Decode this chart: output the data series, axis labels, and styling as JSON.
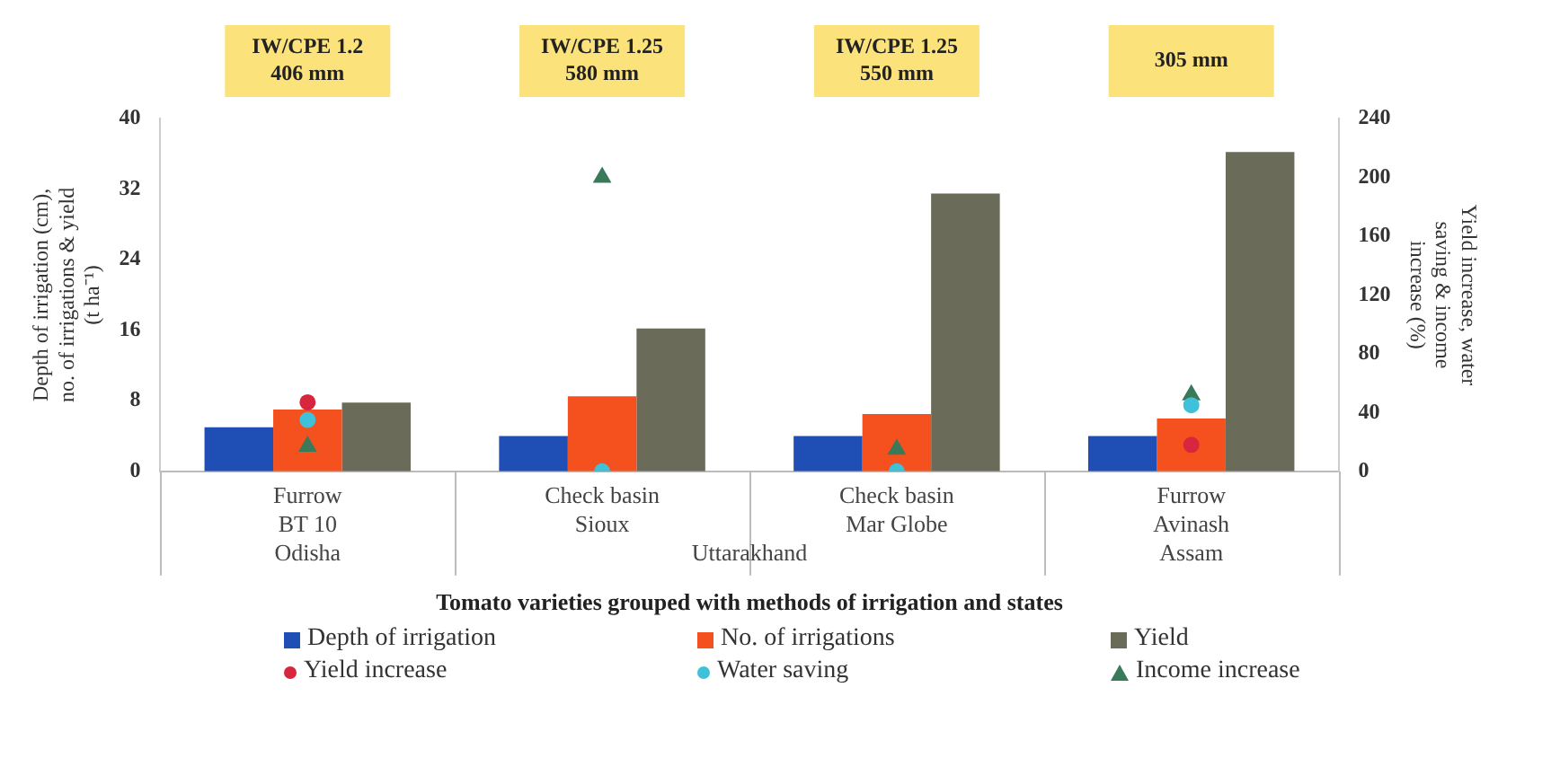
{
  "chart_data": {
    "type": "bar",
    "xlabel": "Tomato varieties grouped with methods of irrigation and states",
    "ylabel": "Depth of irrigation (cm), no. of irrigations & yield (t ha⁻¹)",
    "y2label": "Yield increase, water saving & income increase (%)",
    "categories": [
      "Furrow\nBT 10\nOdisha",
      "Check basin\nSioux",
      "Check basin\nMar Globe",
      "Furrow\nAvinash\nAssam"
    ],
    "series": [
      {
        "name": "Depth of irrigation",
        "color": "#1f4fb4",
        "values": [
          5,
          4,
          4,
          4
        ]
      },
      {
        "name": "No. of irrigations",
        "color": "#f4511e",
        "values": [
          7,
          8.5,
          6.5,
          6
        ]
      },
      {
        "name": "Yield",
        "color": "#6b6b5a",
        "values": [
          7.8,
          16.2,
          31.5,
          36.2
        ]
      },
      {
        "name": "Yield increase",
        "type": "scatter",
        "axis": "y2",
        "marker": "circle",
        "color": "#d7263d",
        "x": [
          "Furrow\nBT 10\nOdisha",
          "Check basin\nSioux",
          "Check basin\nMar Globe",
          "Furrow\nAvinash\nAssam"
        ],
        "values": [
          47,
          null,
          null,
          18
        ]
      },
      {
        "name": "Water saving",
        "type": "scatter",
        "axis": "y2",
        "marker": "circle",
        "color": "#3fc1d9",
        "x": [
          "Furrow\nBT 10\nOdisha",
          "Check basin\nSioux",
          "Check basin\nMar Globe",
          "Furrow\nAvinash\nAssam"
        ],
        "values": [
          35,
          0,
          0,
          45
        ]
      },
      {
        "name": "Income increase",
        "type": "scatter",
        "axis": "y2",
        "marker": "triangle",
        "color": "#3a7a5a",
        "x": [
          "Furrow\nBT 10\nOdisha",
          "Check basin\nSioux",
          "Check basin\nMar Globe",
          "Furrow\nAvinash\nAssam"
        ],
        "values": [
          17,
          200,
          15,
          52
        ]
      }
    ],
    "ylim": [
      0,
      40
    ],
    "yticks": [
      0,
      8,
      16,
      24,
      32,
      40
    ],
    "y2lim": [
      0,
      240
    ],
    "y2ticks": [
      0,
      40,
      80,
      120,
      160,
      200,
      240
    ],
    "grid": false,
    "legend": "bottom",
    "annotations": [
      "IW/CPE 1.2\n406 mm",
      "IW/CPE 1.25\n580 mm",
      "IW/CPE 1.25\n550 mm",
      "305 mm",
      "Uttarakhand"
    ]
  }
}
